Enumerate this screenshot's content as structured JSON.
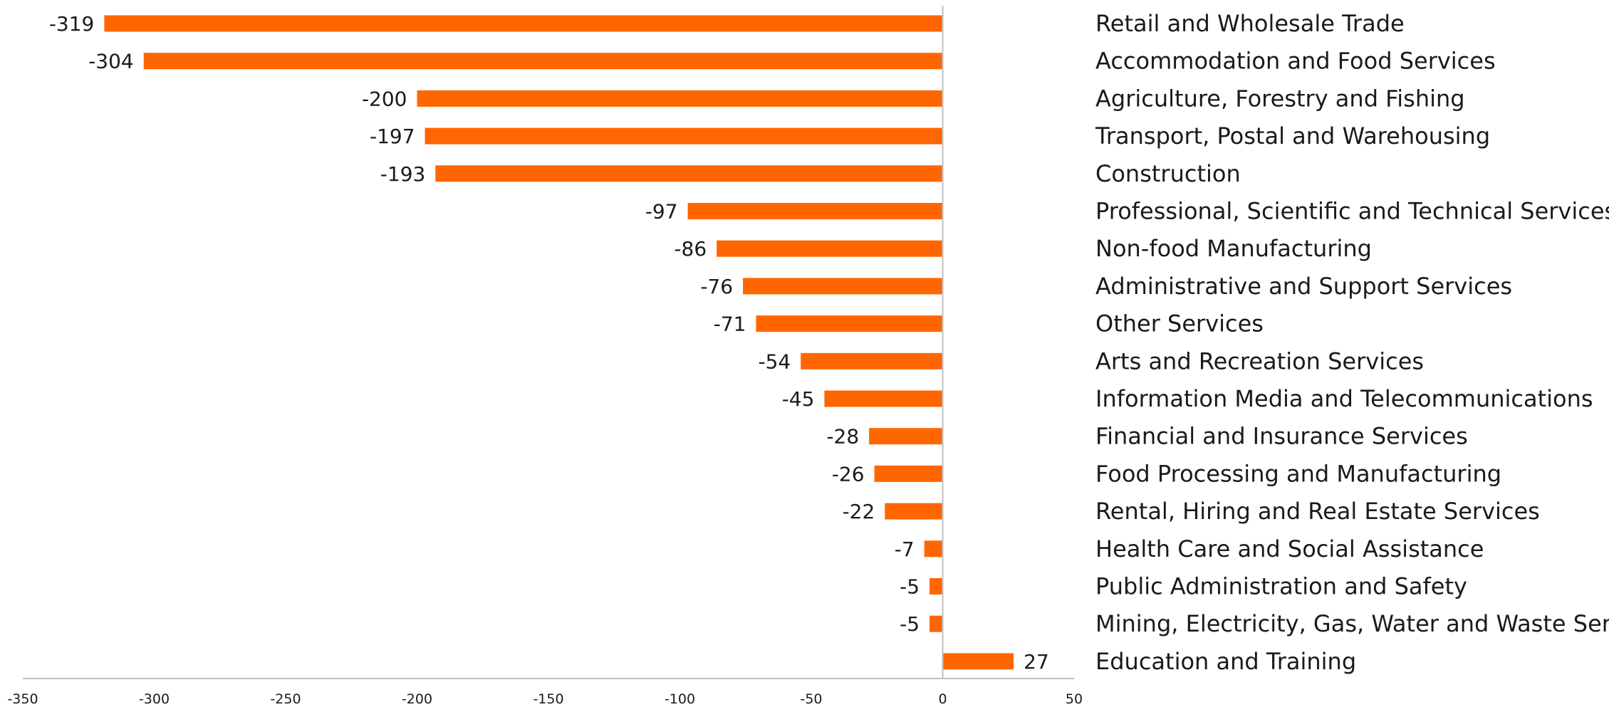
{
  "chart_data": {
    "type": "bar",
    "orientation": "horizontal",
    "title": "",
    "xlabel": "",
    "ylabel": "",
    "xlim": [
      -350,
      50
    ],
    "xticks": [
      -350,
      -300,
      -250,
      -200,
      -150,
      -100,
      -50,
      0,
      50
    ],
    "grid": false,
    "legend": "none",
    "bar_color": "#ff6600",
    "axis_color": "#bfbfbf",
    "data_labels": true,
    "categories": [
      "Retail and Wholesale Trade",
      "Accommodation and Food Services",
      "Agriculture, Forestry and Fishing",
      "Transport, Postal and Warehousing",
      "Construction",
      "Professional, Scientific and Technical Services",
      "Non-food Manufacturing",
      "Administrative and Support Services",
      "Other Services",
      "Arts and Recreation Services",
      "Information Media and Telecommunications",
      "Financial and Insurance Services",
      "Food Processing and Manufacturing",
      "Rental, Hiring and Real Estate Services",
      "Health Care and Social Assistance",
      "Public Administration and Safety",
      "Mining, Electricity, Gas, Water and Waste Services",
      "Education and Training"
    ],
    "values": [
      -319,
      -304,
      -200,
      -197,
      -193,
      -97,
      -86,
      -76,
      -71,
      -54,
      -45,
      -28,
      -26,
      -22,
      -7,
      -5,
      -5,
      27
    ]
  }
}
